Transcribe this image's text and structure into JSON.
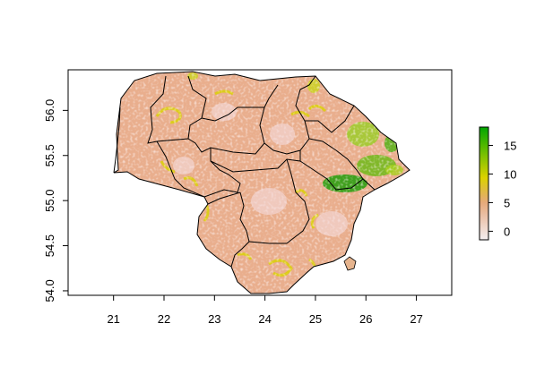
{
  "map": {
    "x_ticks": [
      "21",
      "22",
      "23",
      "24",
      "25",
      "26",
      "27"
    ],
    "y_ticks": [
      "54.0",
      "54.5",
      "55.0",
      "55.5",
      "56.0"
    ],
    "xlim": [
      20.1,
      27.7
    ],
    "ylim": [
      53.95,
      56.45
    ],
    "region_count": 10
  },
  "legend": {
    "ticks": [
      "0",
      "5",
      "10",
      "15"
    ],
    "range": [
      -1.5,
      18.2
    ],
    "colors": {
      "low": "#f2f2f2",
      "mid": "#e8b08d",
      "high_mid": "#e6d800",
      "high": "#00a600"
    }
  }
}
